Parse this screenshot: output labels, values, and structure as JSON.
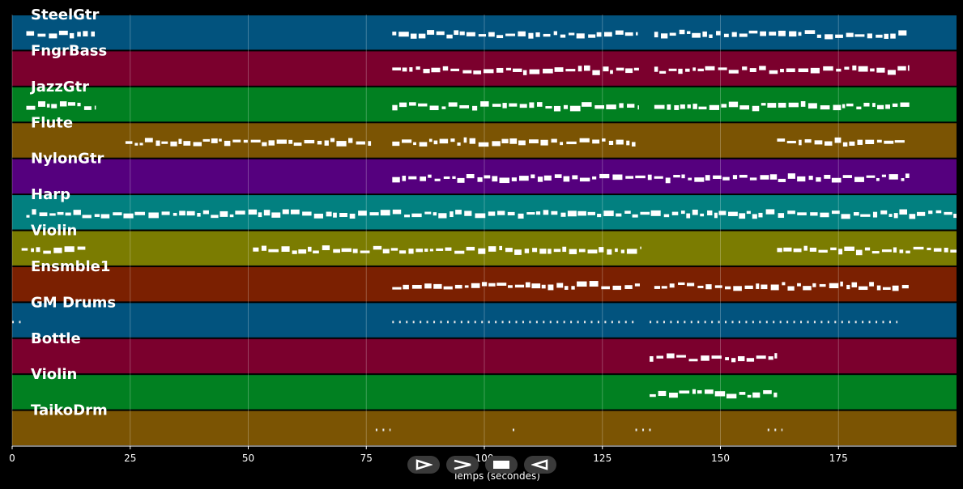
{
  "chart_data": {
    "type": "piano-roll",
    "xlabel": "Temps (secondes)",
    "xlim": [
      0,
      200
    ],
    "xticks": [
      0,
      25,
      50,
      75,
      100,
      125,
      150,
      175
    ],
    "grid": true,
    "tracks": [
      {
        "name": "SteelGtr",
        "color": "#02537e",
        "segments": [
          [
            3,
            17.5
          ],
          [
            80.5,
            132.5
          ],
          [
            136,
            190
          ]
        ]
      },
      {
        "name": "FngrBass",
        "color": "#7b002d",
        "segments": [
          [
            80.5,
            133
          ],
          [
            136,
            190
          ]
        ]
      },
      {
        "name": "JazzGtr",
        "color": "#018021",
        "segments": [
          [
            3,
            17.5
          ],
          [
            80.5,
            132.5
          ],
          [
            136,
            190
          ]
        ]
      },
      {
        "name": "Flute",
        "color": "#7b5403",
        "segments": [
          [
            24,
            76
          ],
          [
            80.5,
            132
          ],
          [
            162,
            189
          ]
        ]
      },
      {
        "name": "NylonGtr",
        "color": "#55007e",
        "segments": [
          [
            80.5,
            190
          ]
        ]
      },
      {
        "name": "Harp",
        "color": "#028080",
        "segments": [
          [
            3,
            200
          ]
        ]
      },
      {
        "name": "Violin",
        "color": "#7b7c01",
        "segments": [
          [
            2,
            15.5
          ],
          [
            51,
            133
          ],
          [
            162,
            200
          ]
        ]
      },
      {
        "name": "Ensmble1",
        "color": "#7b2001",
        "segments": [
          [
            80.5,
            133
          ],
          [
            136,
            190
          ]
        ]
      },
      {
        "name": "GM Drums",
        "color": "#02537e",
        "segments": [
          [
            0,
            2
          ],
          [
            80.5,
            132
          ],
          [
            135,
            187.5
          ]
        ]
      },
      {
        "name": "Bottle",
        "color": "#7b002d",
        "segments": [
          [
            135,
            162
          ]
        ]
      },
      {
        "name": "Violin",
        "color": "#018021",
        "segments": [
          [
            135,
            162
          ]
        ]
      },
      {
        "name": "TaikoDrm",
        "color": "#7b5403",
        "segments": [
          [
            77,
            80
          ],
          [
            106,
            107
          ],
          [
            132,
            136
          ],
          [
            160,
            163
          ]
        ]
      }
    ]
  },
  "controls": {
    "play_icon": "play-icon",
    "forward_icon": "forward-icon",
    "stop_icon": "stop-icon",
    "rewind_icon": "rewind-icon"
  }
}
